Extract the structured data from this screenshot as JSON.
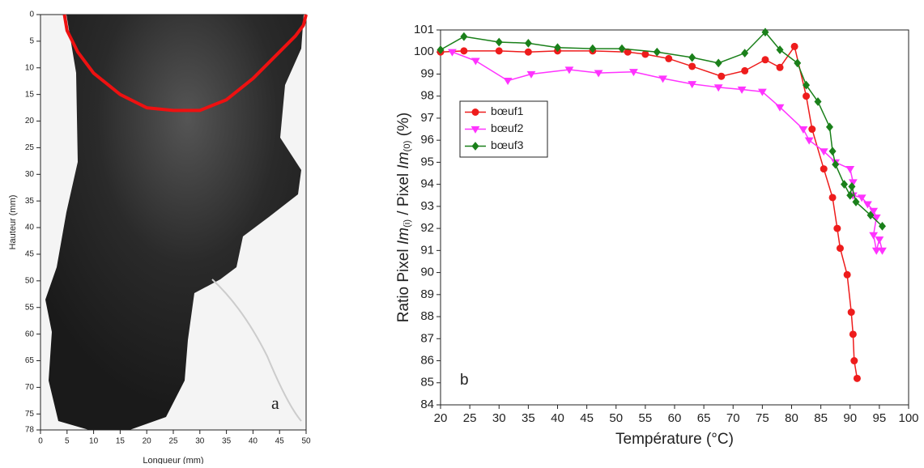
{
  "chart_data": [
    {
      "type": "line",
      "xlabel": "Longueur (mm)",
      "ylabel": "Hauteur (mm)",
      "annotation": "a",
      "xlim": [
        0,
        50
      ],
      "xticks": [
        0,
        5,
        10,
        15,
        20,
        25,
        30,
        35,
        40,
        45,
        50
      ],
      "ylim": [
        78,
        0
      ],
      "yticks": [
        0,
        5,
        10,
        15,
        20,
        25,
        30,
        35,
        40,
        45,
        50,
        55,
        60,
        65,
        70,
        75,
        78
      ],
      "series": [
        {
          "color": "#ee1111",
          "marker": "none",
          "x": [
            4.5,
            5,
            7,
            10,
            15,
            20,
            25,
            30,
            35,
            40,
            45,
            48,
            49.5,
            50
          ],
          "values": [
            0,
            3,
            7,
            11,
            15,
            17.5,
            18,
            18,
            16,
            12,
            7,
            4,
            2,
            0
          ]
        }
      ]
    },
    {
      "type": "line",
      "xlabel": "Température (°C)",
      "ylabel": [
        "Ratio Pixel ",
        "Im",
        "(i)",
        " / Pixel ",
        "Im",
        "(0)",
        " (%)"
      ],
      "annotation": "b",
      "xlim": [
        20,
        100
      ],
      "xticks": [
        20,
        25,
        30,
        35,
        40,
        45,
        50,
        55,
        60,
        65,
        70,
        75,
        80,
        85,
        90,
        95,
        100
      ],
      "ylim": [
        84,
        101
      ],
      "yticks": [
        84,
        85,
        86,
        87,
        88,
        89,
        90,
        91,
        92,
        93,
        94,
        95,
        96,
        97,
        98,
        99,
        100,
        101
      ],
      "legend": "upper left",
      "series": [
        {
          "name": "bœuf1",
          "color": "#ee1c1c",
          "marker": "circle",
          "x": [
            20,
            24,
            30,
            35,
            40,
            46,
            52,
            55,
            59,
            63,
            68,
            72,
            75.5,
            78,
            80.5,
            82.5,
            83.5,
            85.5,
            87,
            87.8,
            88.3,
            89.5,
            90.2,
            90.5,
            90.7,
            91.2
          ],
          "values": [
            100,
            100.05,
            100.05,
            100,
            100.05,
            100.05,
            100,
            99.9,
            99.7,
            99.35,
            98.9,
            99.15,
            99.65,
            99.3,
            100.25,
            98,
            96.5,
            94.7,
            93.4,
            92,
            91.1,
            89.9,
            88.2,
            87.2,
            86,
            85.2
          ]
        },
        {
          "name": "bœuf2",
          "color": "#ff33ff",
          "marker": "triangle-down",
          "x": [
            22,
            26,
            31.5,
            35.5,
            42,
            47,
            53,
            58,
            63,
            67.5,
            71.5,
            75,
            78,
            82,
            83,
            85.5,
            87.5,
            90,
            90.5,
            90.5,
            92,
            93,
            94,
            94.5,
            94,
            94.5,
            95,
            95.5
          ],
          "values": [
            100,
            99.6,
            98.7,
            99,
            99.2,
            99.05,
            99.1,
            98.8,
            98.55,
            98.4,
            98.3,
            98.2,
            97.5,
            96.5,
            96,
            95.5,
            95,
            94.7,
            94.1,
            93.5,
            93.4,
            93.1,
            92.8,
            92.5,
            91.7,
            91,
            91.5,
            91
          ]
        },
        {
          "name": "bœuf3",
          "color": "#1a801a",
          "marker": "diamond",
          "x": [
            20,
            24,
            30,
            35,
            40,
            46,
            51,
            57,
            63,
            67.5,
            72,
            75.5,
            78,
            81,
            82.5,
            84.5,
            86.5,
            87,
            87.5,
            89,
            90,
            90.3,
            91,
            93.5,
            95.5
          ],
          "values": [
            100.1,
            100.7,
            100.45,
            100.4,
            100.2,
            100.15,
            100.15,
            100,
            99.75,
            99.5,
            99.95,
            100.9,
            100.1,
            99.5,
            98.5,
            97.75,
            96.6,
            95.5,
            94.9,
            94,
            93.5,
            93.9,
            93.2,
            92.6,
            92.1
          ]
        }
      ]
    }
  ]
}
